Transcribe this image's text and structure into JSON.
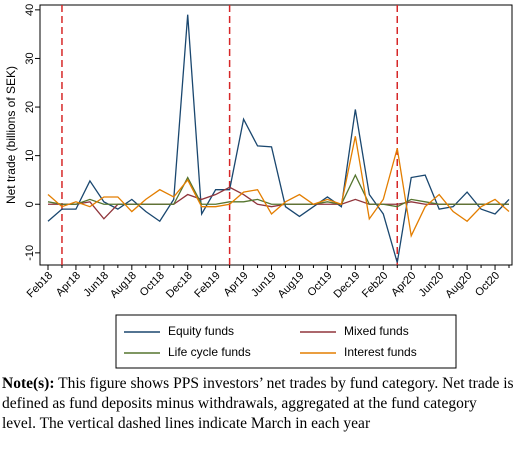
{
  "chart_data": {
    "type": "line",
    "y_label": "Net trade (billions of SEK)",
    "categories": [
      "Feb18",
      null,
      "Apr18",
      null,
      "Jun18",
      null,
      "Aug18",
      null,
      "Oct18",
      null,
      "Dec18",
      null,
      "Feb19",
      null,
      "Apr19",
      null,
      "Jun19",
      null,
      "Aug19",
      null,
      "Oct19",
      null,
      "Dec19",
      null,
      "Feb20",
      null,
      "Apr20",
      null,
      "Jun20",
      null,
      "Aug20",
      null,
      "Oct20",
      null
    ],
    "series": [
      {
        "name": "Equity funds",
        "color": "#1a476f",
        "values": [
          -3.5,
          -1,
          -1,
          4.8,
          0.5,
          -1,
          1,
          -1.5,
          -3.5,
          1,
          39,
          -2,
          3,
          3,
          17.5,
          12,
          11.8,
          -0.5,
          -2.5,
          -0.5,
          1.5,
          -0.5,
          19.5,
          2,
          -2,
          -12,
          5.5,
          6,
          -1,
          -0.5,
          2.5,
          -1,
          -2,
          1
        ]
      },
      {
        "name": "Mixed funds",
        "color": "#90353b",
        "values": [
          0,
          0,
          0,
          0.5,
          -3,
          0,
          0,
          0,
          0,
          0,
          2,
          1,
          2,
          3.5,
          2,
          0,
          -0.5,
          0,
          0,
          0,
          0,
          0,
          1,
          0,
          0,
          0,
          0.5,
          0,
          0,
          0,
          0,
          0,
          0,
          0
        ]
      },
      {
        "name": "Life cycle funds",
        "color": "#55752f",
        "values": [
          0.5,
          0,
          0,
          1,
          0,
          0,
          0,
          0,
          0,
          0,
          5.5,
          0,
          0,
          0.5,
          0.5,
          1,
          0,
          0,
          0,
          0,
          0.5,
          0,
          6,
          0,
          0,
          -0.5,
          1,
          0.5,
          0,
          0,
          0,
          0,
          0,
          0
        ]
      },
      {
        "name": "Interest funds",
        "color": "#e37e00",
        "values": [
          2,
          -0.5,
          0.5,
          -0.5,
          1.5,
          1.5,
          -1.5,
          1,
          3,
          1.5,
          5,
          -0.5,
          -0.5,
          0,
          2.5,
          3,
          -2,
          0.5,
          2,
          0,
          1,
          0,
          14,
          -3,
          1,
          11.5,
          -6.5,
          -0.5,
          2,
          -1.5,
          -3.5,
          -0.5,
          1,
          -1.5
        ]
      }
    ],
    "vlines": [
      1,
      13,
      25
    ],
    "vline_color": "#d62728",
    "ylim": [
      -12.5,
      41
    ],
    "yticks": [
      -10,
      0,
      10,
      20,
      30,
      40
    ]
  },
  "note": {
    "label": "Note(s):",
    "text": "This figure shows PPS investors’ net trades by fund category. Net trade is defined as fund deposits minus withdrawals, aggregated at the fund category level. The vertical dashed lines indicate March in each year"
  }
}
